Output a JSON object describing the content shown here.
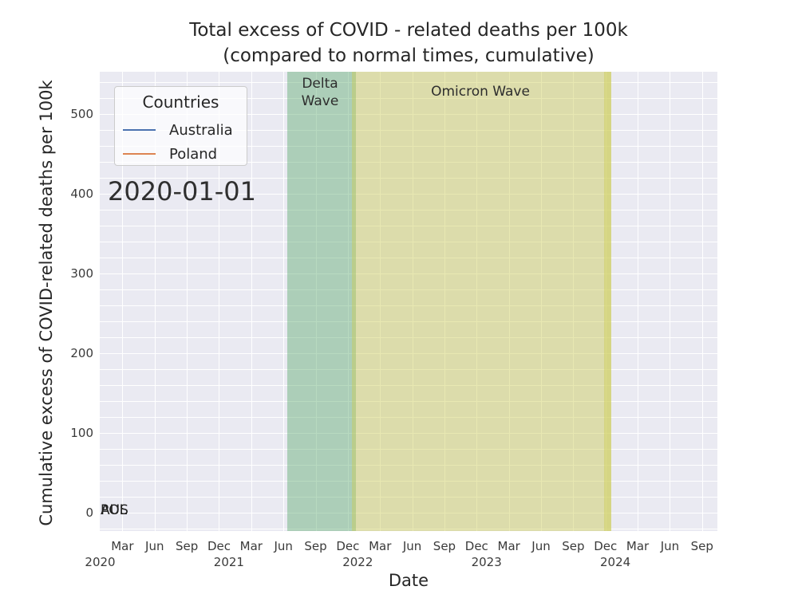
{
  "figure": {
    "title": "Total excess of COVID - related deaths per 100k\n(compared to normal times, cumulative)",
    "xlabel": "Date",
    "ylabel": "Cumulative excess of COVID-related deaths per 100k"
  },
  "legend": {
    "title": "Countries",
    "entries": [
      {
        "label": "Australia",
        "color": "#4c72b0"
      },
      {
        "label": "Poland",
        "color": "#dd8452"
      }
    ]
  },
  "annotations": {
    "current_date": "2020-01-01",
    "country_start_labels": [
      "AUS",
      "POL"
    ]
  },
  "spans": {
    "delta": {
      "label": "Delta\nWave",
      "color": "#55a868",
      "alpha": 0.42
    },
    "omicron": {
      "label": "Omicron Wave",
      "color": "#cccc55",
      "alpha": 0.45
    }
  },
  "axes": {
    "yticks": [
      "0",
      "100",
      "200",
      "300",
      "400",
      "500"
    ],
    "xticks_months": [
      "Mar",
      "Jun",
      "Sep",
      "Dec",
      "Mar",
      "Jun",
      "Sep",
      "Dec",
      "Mar",
      "Jun",
      "Sep",
      "Dec",
      "Mar",
      "Jun",
      "Sep",
      "Dec",
      "Mar",
      "Jun",
      "Sep"
    ],
    "xticks_years": [
      "2020",
      "2021",
      "2022",
      "2023",
      "2024"
    ]
  },
  "chart_data": {
    "type": "line",
    "title": "Total excess of COVID - related deaths per 100k (compared to normal times, cumulative)",
    "xlabel": "Date",
    "ylabel": "Cumulative excess of COVID-related deaths per 100k",
    "xlim": [
      "2020-01-01",
      "2024-10-15"
    ],
    "ylim": [
      -22,
      553
    ],
    "yticks": [
      0,
      100,
      200,
      300,
      400,
      500
    ],
    "xtick_years": [
      2020,
      2021,
      2022,
      2023,
      2024
    ],
    "grid": true,
    "background": "#eaeaf2",
    "legend_position": "upper left",
    "legend_title": "Countries",
    "current_frame_date": "2020-01-01",
    "series": [
      {
        "name": "Australia",
        "short_label": "AUS",
        "color": "#4c72b0",
        "x": [
          "2020-01-01"
        ],
        "values": [
          0
        ]
      },
      {
        "name": "Poland",
        "short_label": "POL",
        "color": "#dd8452",
        "x": [
          "2020-01-01"
        ],
        "values": [
          0
        ]
      }
    ],
    "shaded_regions": [
      {
        "label": "Delta Wave",
        "x_start": "2021-06-15",
        "x_end": "2021-12-20",
        "color": "#55a868",
        "alpha": 0.42
      },
      {
        "label": "Omicron Wave",
        "x_start": "2021-11-25",
        "x_end": "2023-12-15",
        "color": "#cccc55",
        "alpha": 0.45
      }
    ]
  }
}
